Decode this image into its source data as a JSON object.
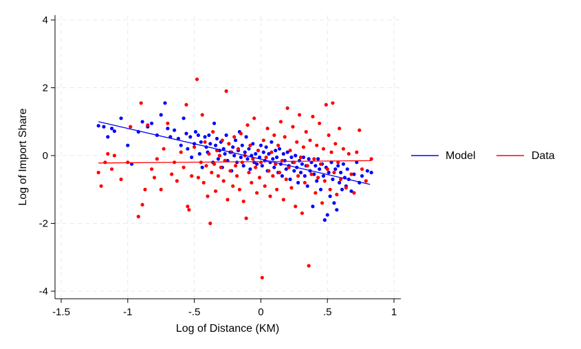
{
  "chart_data": {
    "type": "scatter",
    "xlabel": "Log of Distance (KM)",
    "ylabel": "Log of Import Share",
    "xlim": [
      -1.5,
      1
    ],
    "ylim": [
      -4.2,
      4.2
    ],
    "xticks": [
      -1.5,
      -1,
      -0.5,
      0,
      0.5,
      1
    ],
    "xtick_labels": [
      "-1.5",
      "-1",
      "-.5",
      "0",
      ".5",
      "1"
    ],
    "yticks": [
      -4,
      -2,
      0,
      2,
      4
    ],
    "ytick_labels": [
      "-4",
      "-2",
      "0",
      "2",
      "4"
    ],
    "grid": true,
    "legend_position": "right",
    "series": [
      {
        "name": "Model",
        "color": "#0000ff",
        "fit": {
          "x": [
            -1.22,
            0.82
          ],
          "y": [
            1.0,
            -0.85
          ]
        },
        "points": [
          [
            -1.22,
            0.88
          ],
          [
            -1.18,
            0.85
          ],
          [
            -1.15,
            0.55
          ],
          [
            -1.12,
            0.8
          ],
          [
            -1.1,
            0.72
          ],
          [
            -1.05,
            1.1
          ],
          [
            -1.0,
            0.3
          ],
          [
            -0.97,
            -0.25
          ],
          [
            -0.92,
            0.7
          ],
          [
            -0.89,
            1.0
          ],
          [
            -0.85,
            0.85
          ],
          [
            -0.82,
            0.95
          ],
          [
            -0.78,
            0.6
          ],
          [
            -0.75,
            1.2
          ],
          [
            -0.72,
            1.55
          ],
          [
            -0.7,
            0.8
          ],
          [
            -0.68,
            0.55
          ],
          [
            -0.65,
            0.75
          ],
          [
            -0.62,
            0.5
          ],
          [
            -0.6,
            0.3
          ],
          [
            -0.58,
            1.1
          ],
          [
            -0.56,
            0.65
          ],
          [
            -0.55,
            0.2
          ],
          [
            -0.53,
            0.55
          ],
          [
            -0.52,
            -0.05
          ],
          [
            -0.5,
            0.35
          ],
          [
            -0.49,
            0.7
          ],
          [
            -0.47,
            0.6
          ],
          [
            -0.46,
            0.05
          ],
          [
            -0.45,
            0.4
          ],
          [
            -0.44,
            -0.35
          ],
          [
            -0.42,
            0.55
          ],
          [
            -0.41,
            0.25
          ],
          [
            -0.4,
            0.1
          ],
          [
            -0.39,
            0.6
          ],
          [
            -0.38,
            0.35
          ],
          [
            -0.36,
            -0.2
          ],
          [
            -0.35,
            0.95
          ],
          [
            -0.34,
            0.3
          ],
          [
            -0.33,
            0.5
          ],
          [
            -0.32,
            -0.1
          ],
          [
            -0.31,
            0.15
          ],
          [
            -0.3,
            0.4
          ],
          [
            -0.29,
            -0.35
          ],
          [
            -0.28,
            0.2
          ],
          [
            -0.27,
            0.05
          ],
          [
            -0.26,
            0.6
          ],
          [
            -0.25,
            -0.15
          ],
          [
            -0.24,
            0.35
          ],
          [
            -0.23,
            0.1
          ],
          [
            -0.22,
            -0.45
          ],
          [
            -0.21,
            0.25
          ],
          [
            -0.2,
            0.0
          ],
          [
            -0.19,
            0.45
          ],
          [
            -0.18,
            -0.2
          ],
          [
            -0.17,
            0.15
          ],
          [
            -0.16,
            0.7
          ],
          [
            -0.15,
            -0.05
          ],
          [
            -0.14,
            0.3
          ],
          [
            -0.13,
            -0.3
          ],
          [
            -0.12,
            0.1
          ],
          [
            -0.11,
            0.55
          ],
          [
            -0.1,
            -0.1
          ],
          [
            -0.09,
            0.2
          ],
          [
            -0.08,
            -0.4
          ],
          [
            -0.07,
            0.0
          ],
          [
            -0.06,
            0.35
          ],
          [
            -0.05,
            -0.2
          ],
          [
            -0.04,
            0.05
          ],
          [
            -0.03,
            -0.25
          ],
          [
            -0.02,
            0.15
          ],
          [
            -0.01,
            -0.05
          ],
          [
            0.0,
            0.3
          ],
          [
            0.01,
            -0.3
          ],
          [
            0.02,
            0.1
          ],
          [
            0.03,
            -0.15
          ],
          [
            0.04,
            0.25
          ],
          [
            0.05,
            -0.45
          ],
          [
            0.06,
            0.05
          ],
          [
            0.07,
            -0.2
          ],
          [
            0.08,
            0.4
          ],
          [
            0.09,
            -0.1
          ],
          [
            0.1,
            -0.35
          ],
          [
            0.11,
            0.15
          ],
          [
            0.12,
            -0.05
          ],
          [
            0.13,
            -0.5
          ],
          [
            0.14,
            0.2
          ],
          [
            0.15,
            -0.25
          ],
          [
            0.16,
            -0.6
          ],
          [
            0.17,
            0.05
          ],
          [
            0.18,
            -0.15
          ],
          [
            0.19,
            -0.4
          ],
          [
            0.2,
            0.1
          ],
          [
            0.21,
            -0.3
          ],
          [
            0.22,
            -0.7
          ],
          [
            0.23,
            -0.05
          ],
          [
            0.24,
            -0.2
          ],
          [
            0.25,
            -0.45
          ],
          [
            0.26,
            0.0
          ],
          [
            0.27,
            -0.35
          ],
          [
            0.28,
            -0.8
          ],
          [
            0.29,
            -0.15
          ],
          [
            0.3,
            -0.5
          ],
          [
            0.31,
            -0.25
          ],
          [
            0.32,
            -0.05
          ],
          [
            0.33,
            -0.6
          ],
          [
            0.34,
            -0.3
          ],
          [
            0.35,
            -0.9
          ],
          [
            0.36,
            -0.1
          ],
          [
            0.37,
            -0.45
          ],
          [
            0.38,
            -0.2
          ],
          [
            0.39,
            -1.5
          ],
          [
            0.4,
            -0.55
          ],
          [
            0.41,
            -0.3
          ],
          [
            0.42,
            -0.75
          ],
          [
            0.43,
            -0.1
          ],
          [
            0.44,
            -0.4
          ],
          [
            0.45,
            -1.0
          ],
          [
            0.46,
            -0.25
          ],
          [
            0.47,
            -0.6
          ],
          [
            0.48,
            -1.9
          ],
          [
            0.49,
            -0.35
          ],
          [
            0.5,
            -1.75
          ],
          [
            0.51,
            -0.5
          ],
          [
            0.52,
            -1.2
          ],
          [
            0.53,
            -0.2
          ],
          [
            0.54,
            -0.7
          ],
          [
            0.55,
            -1.4
          ],
          [
            0.56,
            -0.4
          ],
          [
            0.57,
            -1.6
          ],
          [
            0.58,
            -0.3
          ],
          [
            0.59,
            -0.8
          ],
          [
            0.6,
            -0.5
          ],
          [
            0.61,
            -1.0
          ],
          [
            0.62,
            -0.25
          ],
          [
            0.63,
            -0.65
          ],
          [
            0.64,
            -0.9
          ],
          [
            0.65,
            -0.4
          ],
          [
            0.66,
            -0.7
          ],
          [
            0.68,
            -1.05
          ],
          [
            0.7,
            -0.55
          ],
          [
            0.72,
            -0.2
          ],
          [
            0.74,
            -0.8
          ],
          [
            0.76,
            -0.6
          ],
          [
            0.8,
            -0.45
          ],
          [
            0.83,
            -0.5
          ]
        ]
      },
      {
        "name": "Data",
        "color": "#ff0000",
        "fit": {
          "x": [
            -1.22,
            0.83
          ],
          "y": [
            -0.22,
            -0.15
          ]
        },
        "points": [
          [
            -1.22,
            -0.5
          ],
          [
            -1.2,
            -0.9
          ],
          [
            -1.17,
            -0.2
          ],
          [
            -1.15,
            0.05
          ],
          [
            -1.12,
            -0.4
          ],
          [
            -1.1,
            0.0
          ],
          [
            -1.05,
            -0.7
          ],
          [
            -1.0,
            -0.2
          ],
          [
            -0.98,
            0.85
          ],
          [
            -0.92,
            -1.8
          ],
          [
            -0.9,
            1.55
          ],
          [
            -0.89,
            -1.45
          ],
          [
            -0.87,
            -1.0
          ],
          [
            -0.85,
            0.9
          ],
          [
            -0.82,
            -0.4
          ],
          [
            -0.8,
            -0.65
          ],
          [
            -0.78,
            -0.1
          ],
          [
            -0.75,
            -1.0
          ],
          [
            -0.73,
            0.2
          ],
          [
            -0.7,
            0.95
          ],
          [
            -0.67,
            -0.55
          ],
          [
            -0.65,
            -0.2
          ],
          [
            -0.63,
            -0.75
          ],
          [
            -0.6,
            0.1
          ],
          [
            -0.58,
            -0.35
          ],
          [
            -0.56,
            1.5
          ],
          [
            -0.55,
            -1.5
          ],
          [
            -0.54,
            -1.6
          ],
          [
            -0.52,
            -0.6
          ],
          [
            -0.5,
            0.25
          ],
          [
            -0.48,
            2.25
          ],
          [
            -0.47,
            -0.65
          ],
          [
            -0.45,
            -0.2
          ],
          [
            -0.44,
            1.2
          ],
          [
            -0.43,
            -0.8
          ],
          [
            -0.42,
            0.4
          ],
          [
            -0.41,
            -0.3
          ],
          [
            -0.4,
            -1.2
          ],
          [
            -0.39,
            0.05
          ],
          [
            -0.38,
            -2.0
          ],
          [
            -0.37,
            -0.5
          ],
          [
            -0.36,
            0.7
          ],
          [
            -0.35,
            -0.25
          ],
          [
            -0.34,
            -1.05
          ],
          [
            -0.33,
            0.15
          ],
          [
            -0.32,
            -0.6
          ],
          [
            -0.31,
            0.0
          ],
          [
            -0.3,
            -0.35
          ],
          [
            -0.29,
            0.45
          ],
          [
            -0.28,
            -0.75
          ],
          [
            -0.27,
            -0.15
          ],
          [
            -0.26,
            1.9
          ],
          [
            -0.25,
            -1.3
          ],
          [
            -0.24,
            0.35
          ],
          [
            -0.23,
            -0.45
          ],
          [
            -0.22,
            0.1
          ],
          [
            -0.21,
            -0.9
          ],
          [
            -0.2,
            0.55
          ],
          [
            -0.19,
            -0.3
          ],
          [
            -0.18,
            -0.6
          ],
          [
            -0.17,
            0.2
          ],
          [
            -0.16,
            -1.0
          ],
          [
            -0.15,
            0.65
          ],
          [
            -0.14,
            -0.2
          ],
          [
            -0.13,
            -1.35
          ],
          [
            -0.12,
            0.0
          ],
          [
            -0.11,
            -1.85
          ],
          [
            -0.1,
            0.9
          ],
          [
            -0.09,
            -0.5
          ],
          [
            -0.08,
            0.3
          ],
          [
            -0.07,
            -0.8
          ],
          [
            -0.06,
            -0.1
          ],
          [
            -0.05,
            1.1
          ],
          [
            -0.04,
            -0.35
          ],
          [
            -0.03,
            -1.1
          ],
          [
            -0.02,
            0.15
          ],
          [
            -0.01,
            -0.65
          ],
          [
            0.0,
            -0.2
          ],
          [
            0.01,
            -3.6
          ],
          [
            0.02,
            0.45
          ],
          [
            0.03,
            -0.9
          ],
          [
            0.04,
            -0.05
          ],
          [
            0.05,
            0.8
          ],
          [
            0.06,
            -0.45
          ],
          [
            0.07,
            -1.2
          ],
          [
            0.08,
            0.1
          ],
          [
            0.09,
            -0.6
          ],
          [
            0.1,
            0.6
          ],
          [
            0.11,
            -0.25
          ],
          [
            0.12,
            -1.0
          ],
          [
            0.13,
            0.3
          ],
          [
            0.14,
            -0.5
          ],
          [
            0.15,
            1.0
          ],
          [
            0.16,
            -0.15
          ],
          [
            0.17,
            -1.3
          ],
          [
            0.18,
            0.55
          ],
          [
            0.19,
            -0.7
          ],
          [
            0.2,
            1.4
          ],
          [
            0.21,
            -0.35
          ],
          [
            0.22,
            0.15
          ],
          [
            0.23,
            -0.95
          ],
          [
            0.24,
            0.85
          ],
          [
            0.25,
            -0.2
          ],
          [
            0.26,
            -1.5
          ],
          [
            0.27,
            0.4
          ],
          [
            0.28,
            -0.6
          ],
          [
            0.29,
            1.2
          ],
          [
            0.3,
            -0.05
          ],
          [
            0.31,
            -1.7
          ],
          [
            0.32,
            0.25
          ],
          [
            0.33,
            -0.8
          ],
          [
            0.34,
            0.7
          ],
          [
            0.35,
            -0.3
          ],
          [
            0.36,
            -3.25
          ],
          [
            0.37,
            0.45
          ],
          [
            0.38,
            -0.55
          ],
          [
            0.39,
            1.15
          ],
          [
            0.4,
            -0.1
          ],
          [
            0.41,
            -1.1
          ],
          [
            0.42,
            0.3
          ],
          [
            0.43,
            -0.65
          ],
          [
            0.44,
            0.95
          ],
          [
            0.45,
            -0.25
          ],
          [
            0.46,
            -1.4
          ],
          [
            0.47,
            0.2
          ],
          [
            0.48,
            -0.75
          ],
          [
            0.49,
            1.5
          ],
          [
            0.5,
            -0.4
          ],
          [
            0.51,
            0.6
          ],
          [
            0.52,
            -1.0
          ],
          [
            0.53,
            0.1
          ],
          [
            0.54,
            1.55
          ],
          [
            0.55,
            -0.5
          ],
          [
            0.56,
            0.35
          ],
          [
            0.57,
            -1.15
          ],
          [
            0.58,
            -0.2
          ],
          [
            0.59,
            0.8
          ],
          [
            0.6,
            -0.7
          ],
          [
            0.62,
            0.2
          ],
          [
            0.64,
            -0.95
          ],
          [
            0.66,
            0.05
          ],
          [
            0.68,
            -0.55
          ],
          [
            0.7,
            -1.1
          ],
          [
            0.72,
            0.1
          ],
          [
            0.74,
            0.75
          ],
          [
            0.76,
            -0.4
          ],
          [
            0.79,
            -0.75
          ],
          [
            0.83,
            -0.1
          ]
        ]
      }
    ]
  }
}
